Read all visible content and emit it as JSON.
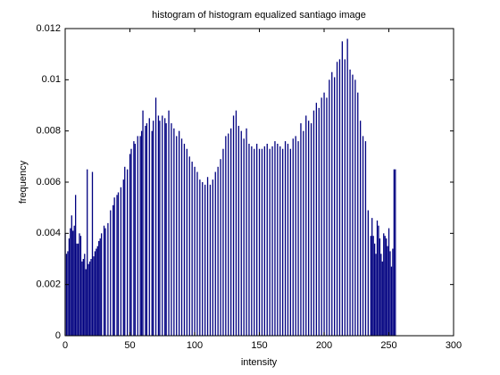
{
  "chart_data": {
    "type": "bar",
    "title": "histogram of histogram equalized santiago image",
    "x_label": "intensity",
    "y_label": "frequency",
    "color": "#000080",
    "x": [
      0,
      1,
      2,
      3,
      4,
      5,
      6,
      7,
      8,
      9,
      10,
      11,
      12,
      13,
      14,
      15,
      16,
      17,
      18,
      19,
      20,
      21,
      22,
      23,
      24,
      25,
      26,
      27,
      28,
      30,
      31,
      33,
      35,
      37,
      38,
      40,
      41,
      43,
      45,
      46,
      48,
      50,
      51,
      53,
      54,
      56,
      58,
      59,
      60,
      62,
      63,
      65,
      67,
      68,
      70,
      72,
      73,
      75,
      77,
      78,
      80,
      82,
      84,
      86,
      88,
      90,
      92,
      94,
      96,
      98,
      100,
      102,
      104,
      106,
      108,
      110,
      112,
      114,
      116,
      118,
      120,
      122,
      124,
      126,
      128,
      130,
      132,
      134,
      136,
      138,
      140,
      142,
      144,
      146,
      148,
      150,
      152,
      154,
      156,
      158,
      160,
      162,
      164,
      166,
      168,
      170,
      172,
      174,
      176,
      178,
      180,
      182,
      184,
      186,
      188,
      190,
      192,
      194,
      196,
      198,
      200,
      202,
      204,
      206,
      208,
      210,
      212,
      214,
      216,
      218,
      220,
      222,
      224,
      226,
      228,
      230,
      232,
      234,
      236,
      237,
      238,
      239,
      240,
      241,
      242,
      243,
      244,
      245,
      246,
      247,
      248,
      249,
      250,
      251,
      252,
      253,
      254,
      255
    ],
    "values": [
      0.004,
      0.0032,
      0.0033,
      0.0038,
      0.0042,
      0.0047,
      0.0041,
      0.0043,
      0.0055,
      0.0036,
      0.0036,
      0.004,
      0.0039,
      0.0029,
      0.003,
      0.0032,
      0.0026,
      0.0065,
      0.0028,
      0.0029,
      0.003,
      0.0064,
      0.0031,
      0.0033,
      0.0034,
      0.0035,
      0.0037,
      0.0038,
      0.004,
      0.0043,
      0.0042,
      0.0044,
      0.0049,
      0.0051,
      0.0054,
      0.0055,
      0.0056,
      0.0058,
      0.0061,
      0.0066,
      0.0065,
      0.0071,
      0.0073,
      0.0076,
      0.0075,
      0.0078,
      0.0078,
      0.008,
      0.0088,
      0.0082,
      0.0083,
      0.0085,
      0.008,
      0.0084,
      0.0093,
      0.0086,
      0.0084,
      0.0086,
      0.0085,
      0.0083,
      0.0088,
      0.0083,
      0.0081,
      0.0078,
      0.008,
      0.0077,
      0.0075,
      0.0073,
      0.007,
      0.0068,
      0.0066,
      0.0064,
      0.0061,
      0.006,
      0.0059,
      0.0062,
      0.0059,
      0.0061,
      0.0064,
      0.0066,
      0.0069,
      0.0073,
      0.0078,
      0.0079,
      0.0081,
      0.0086,
      0.0088,
      0.0082,
      0.008,
      0.0077,
      0.0081,
      0.0075,
      0.0074,
      0.0073,
      0.0075,
      0.0073,
      0.0073,
      0.0074,
      0.0075,
      0.0073,
      0.0074,
      0.0076,
      0.0075,
      0.0074,
      0.0073,
      0.0076,
      0.0075,
      0.0073,
      0.0077,
      0.0078,
      0.0076,
      0.0083,
      0.008,
      0.0086,
      0.0084,
      0.0083,
      0.0088,
      0.0091,
      0.0089,
      0.0093,
      0.0095,
      0.0093,
      0.01,
      0.0103,
      0.0101,
      0.0107,
      0.0108,
      0.0115,
      0.0108,
      0.0116,
      0.0104,
      0.0102,
      0.01,
      0.0095,
      0.0084,
      0.0078,
      0.0076,
      0.0049,
      0.0039,
      0.0046,
      0.0039,
      0.0036,
      0.0032,
      0.0045,
      0.0043,
      0.0038,
      0.0032,
      0.0029,
      0.004,
      0.0039,
      0.0038,
      0.0035,
      0.0042,
      0.0033,
      0.0027,
      0.0034,
      0.0065,
      0.0065
    ],
    "xlim": [
      0,
      300
    ],
    "xticks": [
      0,
      50,
      100,
      150,
      200,
      250,
      300
    ],
    "ylim": [
      0,
      0.012
    ],
    "yticks": [
      0,
      0.002,
      0.004,
      0.006,
      0.008,
      0.01,
      0.012
    ]
  }
}
